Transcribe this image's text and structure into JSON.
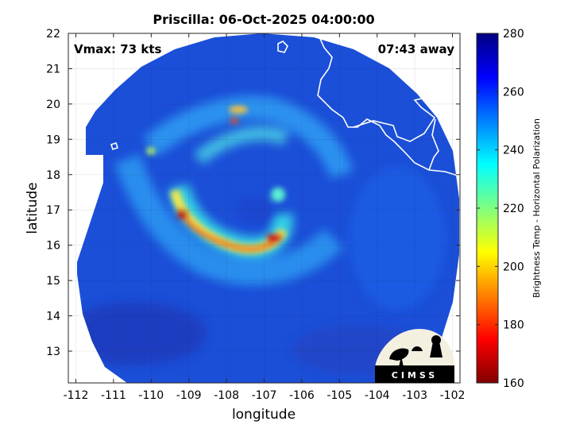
{
  "chart_data": {
    "type": "heatmap",
    "title": "Priscilla: 06-Oct-2025 04:00:00",
    "xlabel": "longitude",
    "ylabel": "latitude",
    "xlim": [
      -112.2,
      -101.8
    ],
    "ylim": [
      12.1,
      22.0
    ],
    "xticks": [
      -112,
      -111,
      -110,
      -109,
      -108,
      -107,
      -106,
      -105,
      -104,
      -103,
      -102
    ],
    "yticks": [
      13,
      14,
      15,
      16,
      17,
      18,
      19,
      20,
      21,
      22
    ],
    "grid": true,
    "storm_center": {
      "lon": -107.3,
      "lat": 16.8
    },
    "vmax_text": "Vmax: 73 kts",
    "time_text": "07:43 away",
    "colorbar": {
      "label": "Brightness Temp - Horizontal Polarization",
      "min": 160,
      "max": 280,
      "ticks": [
        160,
        180,
        200,
        220,
        240,
        260,
        280
      ],
      "colormap": "jet"
    }
  },
  "logo": {
    "text": "CIMSS"
  },
  "colors": {
    "background": "#ffffff",
    "scene_base": "#1a4fd8",
    "coastline": "#ffffff"
  }
}
